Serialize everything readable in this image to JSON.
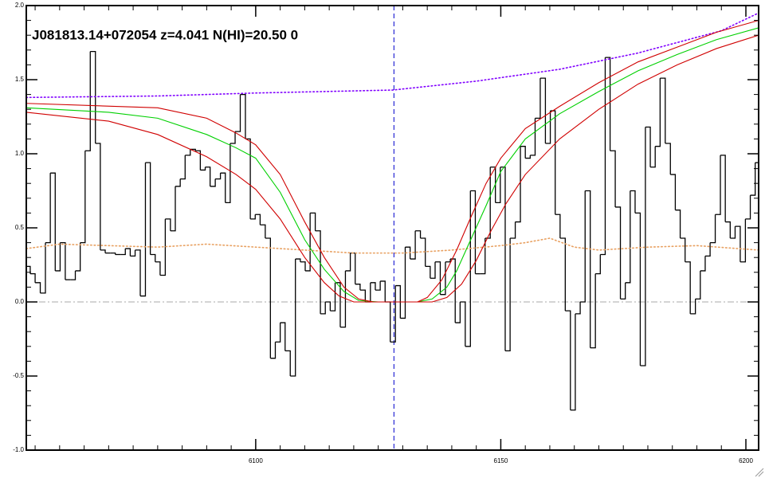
{
  "chart_data": {
    "type": "line",
    "title": "J081813.14+072054 z=4.041 N(HI)=20.50 0",
    "xlim": [
      6053.2,
      6202.6
    ],
    "ylim": [
      -1.0,
      2.0
    ],
    "xticks": [
      6100,
      6150,
      6200
    ],
    "yticks": [
      {
        "value": -1.0,
        "label": "-1.0"
      },
      {
        "value": -0.5,
        "label": "-0.5"
      },
      {
        "value": 0,
        "label": "0.0"
      },
      {
        "value": 0.5,
        "label": "0.5"
      },
      {
        "value": 1.0,
        "label": "1.0"
      },
      {
        "value": 1.5,
        "label": "1.5"
      },
      {
        "value": 2.0,
        "label": "2.0"
      }
    ],
    "xminor": 5,
    "yminor": 0.1,
    "hline": 0,
    "vline": 6128.2,
    "series": [
      {
        "style": "step",
        "color": "#000000",
        "x": [
          6053.5,
          6054.5,
          6055.5,
          6056.6,
          6057.6,
          6058.6,
          6059.6,
          6060.6,
          6061.7,
          6062.7,
          6063.7,
          6064.7,
          6065.7,
          6066.8,
          6067.8,
          6068.8,
          6069.8,
          6070.8,
          6071.9,
          6072.9,
          6073.9,
          6074.9,
          6075.9,
          6077.0,
          6078.0,
          6079.0,
          6080.0,
          6081.0,
          6082.1,
          6083.1,
          6084.1,
          6085.1,
          6086.1,
          6087.2,
          6088.2,
          6089.2,
          6090.2,
          6091.2,
          6092.3,
          6093.3,
          6094.3,
          6095.3,
          6096.3,
          6097.4,
          6098.4,
          6099.4,
          6100.4,
          6101.4,
          6102.5,
          6103.5,
          6104.5,
          6105.5,
          6106.5,
          6107.6,
          6108.6,
          6109.6,
          6110.6,
          6111.6,
          6112.7,
          6113.7,
          6114.7,
          6115.7,
          6116.7,
          6117.8,
          6118.8,
          6119.8,
          6120.8,
          6121.8,
          6122.9,
          6123.9,
          6124.9,
          6125.9,
          6126.9,
          6128.0,
          6129.0,
          6130.0,
          6131.0,
          6132.0,
          6133.1,
          6134.1,
          6135.1,
          6136.1,
          6137.1,
          6138.2,
          6139.2,
          6140.2,
          6141.2,
          6142.2,
          6143.3,
          6144.3,
          6145.3,
          6146.3,
          6147.3,
          6148.4,
          6149.4,
          6150.4,
          6151.4,
          6152.4,
          6153.5,
          6154.5,
          6155.5,
          6156.5,
          6157.5,
          6158.6,
          6159.6,
          6160.6,
          6161.6,
          6162.6,
          6163.7,
          6164.7,
          6165.7,
          6166.7,
          6167.7,
          6168.8,
          6169.8,
          6170.8,
          6171.8,
          6172.8,
          6173.9,
          6174.9,
          6175.9,
          6176.9,
          6177.9,
          6179.0,
          6180.0,
          6181.0,
          6182.0,
          6183.0,
          6184.1,
          6185.1,
          6186.1,
          6187.1,
          6188.1,
          6189.2,
          6190.2,
          6191.2,
          6192.2,
          6193.2,
          6194.3,
          6195.3,
          6196.3,
          6197.3,
          6198.3,
          6199.4,
          6200.4,
          6201.4,
          6202.4
        ],
        "values": [
          0.24,
          0.19,
          0.13,
          0.06,
          0.4,
          0.87,
          0.21,
          0.4,
          0.15,
          0.15,
          0.21,
          0.4,
          1.02,
          1.69,
          1.07,
          0.35,
          0.33,
          0.33,
          0.32,
          0.32,
          0.36,
          0.31,
          0.35,
          0.04,
          0.94,
          0.32,
          0.27,
          0.18,
          0.56,
          0.48,
          0.78,
          0.83,
          0.99,
          1.03,
          1.02,
          0.89,
          0.91,
          0.78,
          0.83,
          0.87,
          0.67,
          1.07,
          1.15,
          1.4,
          1.1,
          0.56,
          0.59,
          0.52,
          0.43,
          -0.38,
          -0.27,
          -0.14,
          -0.33,
          -0.5,
          0.29,
          0.27,
          0.21,
          0.6,
          0.48,
          -0.08,
          0.0,
          -0.06,
          0.13,
          -0.17,
          0.21,
          0.33,
          0.12,
          0.08,
          0.0,
          0.13,
          0.08,
          0.14,
          0.0,
          -0.27,
          0.11,
          -0.11,
          0.37,
          0.29,
          0.48,
          0.43,
          0.24,
          0.16,
          0.27,
          0.05,
          0.27,
          0.29,
          -0.14,
          0.0,
          -0.3,
          0.75,
          0.19,
          0.19,
          0.43,
          0.91,
          0.67,
          0.91,
          -0.33,
          0.43,
          0.54,
          1.05,
          0.97,
          0.99,
          1.24,
          1.51,
          1.07,
          1.29,
          0.59,
          0.43,
          -0.06,
          -0.73,
          -0.08,
          0.0,
          0.75,
          -0.31,
          0.19,
          0.32,
          1.65,
          1.02,
          0.64,
          0.02,
          0.13,
          0.75,
          0.6,
          -0.43,
          1.18,
          0.91,
          1.05,
          1.51,
          1.07,
          0.86,
          0.62,
          0.43,
          0.27,
          -0.08,
          0.02,
          0.21,
          0.31,
          0.4,
          0.59,
          0.99,
          0.54,
          0.43,
          0.51,
          0.27,
          0.56,
          0.72,
          0.94
        ]
      },
      {
        "style": "dotted",
        "color": "#e8a060",
        "x": [
          6053.2,
          6060,
          6070,
          6080,
          6090,
          6100,
          6110,
          6120,
          6130,
          6140,
          6150,
          6155,
          6160,
          6165,
          6170,
          6180,
          6190,
          6202.6
        ],
        "values": [
          0.36,
          0.39,
          0.38,
          0.37,
          0.39,
          0.37,
          0.35,
          0.33,
          0.33,
          0.35,
          0.38,
          0.4,
          0.43,
          0.37,
          0.35,
          0.37,
          0.38,
          0.35
        ]
      },
      {
        "style": "dotted",
        "color": "#8000ff",
        "x": [
          6053.2,
          6080,
          6100,
          6128,
          6145,
          6162,
          6178,
          6195,
          6202.6
        ],
        "values": [
          1.38,
          1.39,
          1.41,
          1.43,
          1.49,
          1.57,
          1.68,
          1.83,
          1.95
        ]
      },
      {
        "style": "solid",
        "color": "#00d000",
        "x": [
          6053.2,
          6070,
          6080,
          6090,
          6096,
          6100,
          6105,
          6110,
          6114,
          6118,
          6121,
          6125,
          6130,
          6133,
          6136,
          6139,
          6141,
          6144,
          6147,
          6150,
          6155,
          6162,
          6170,
          6178,
          6186,
          6194,
          6202.6
        ],
        "values": [
          1.31,
          1.28,
          1.24,
          1.13,
          1.04,
          0.97,
          0.74,
          0.42,
          0.22,
          0.07,
          0.01,
          0,
          0,
          0,
          0.02,
          0.1,
          0.21,
          0.43,
          0.65,
          0.88,
          1.1,
          1.27,
          1.42,
          1.56,
          1.67,
          1.77,
          1.85
        ]
      },
      {
        "style": "solid",
        "color": "#d00000",
        "x": [
          6053.2,
          6080,
          6090,
          6096,
          6100,
          6105,
          6110,
          6114,
          6118,
          6121,
          6124,
          6133,
          6135,
          6138,
          6141,
          6144,
          6147,
          6150,
          6155,
          6162,
          6170,
          6178,
          6186,
          6194,
          6202.6
        ],
        "values": [
          1.34,
          1.31,
          1.24,
          1.14,
          1.06,
          0.86,
          0.54,
          0.3,
          0.1,
          0.02,
          0,
          0,
          0.03,
          0.15,
          0.35,
          0.58,
          0.8,
          0.97,
          1.17,
          1.32,
          1.48,
          1.62,
          1.72,
          1.82,
          1.9
        ]
      },
      {
        "style": "solid",
        "color": "#d00000",
        "x": [
          6053.2,
          6070,
          6080,
          6090,
          6096,
          6100,
          6105,
          6110,
          6114,
          6117,
          6120,
          6136,
          6139,
          6142,
          6145,
          6148,
          6151,
          6155,
          6162,
          6170,
          6178,
          6186,
          6194,
          6202.6
        ],
        "values": [
          1.28,
          1.22,
          1.13,
          0.98,
          0.86,
          0.76,
          0.56,
          0.3,
          0.13,
          0.04,
          0,
          0,
          0.03,
          0.12,
          0.28,
          0.48,
          0.66,
          0.86,
          1.1,
          1.3,
          1.47,
          1.6,
          1.71,
          1.8
        ]
      }
    ]
  }
}
